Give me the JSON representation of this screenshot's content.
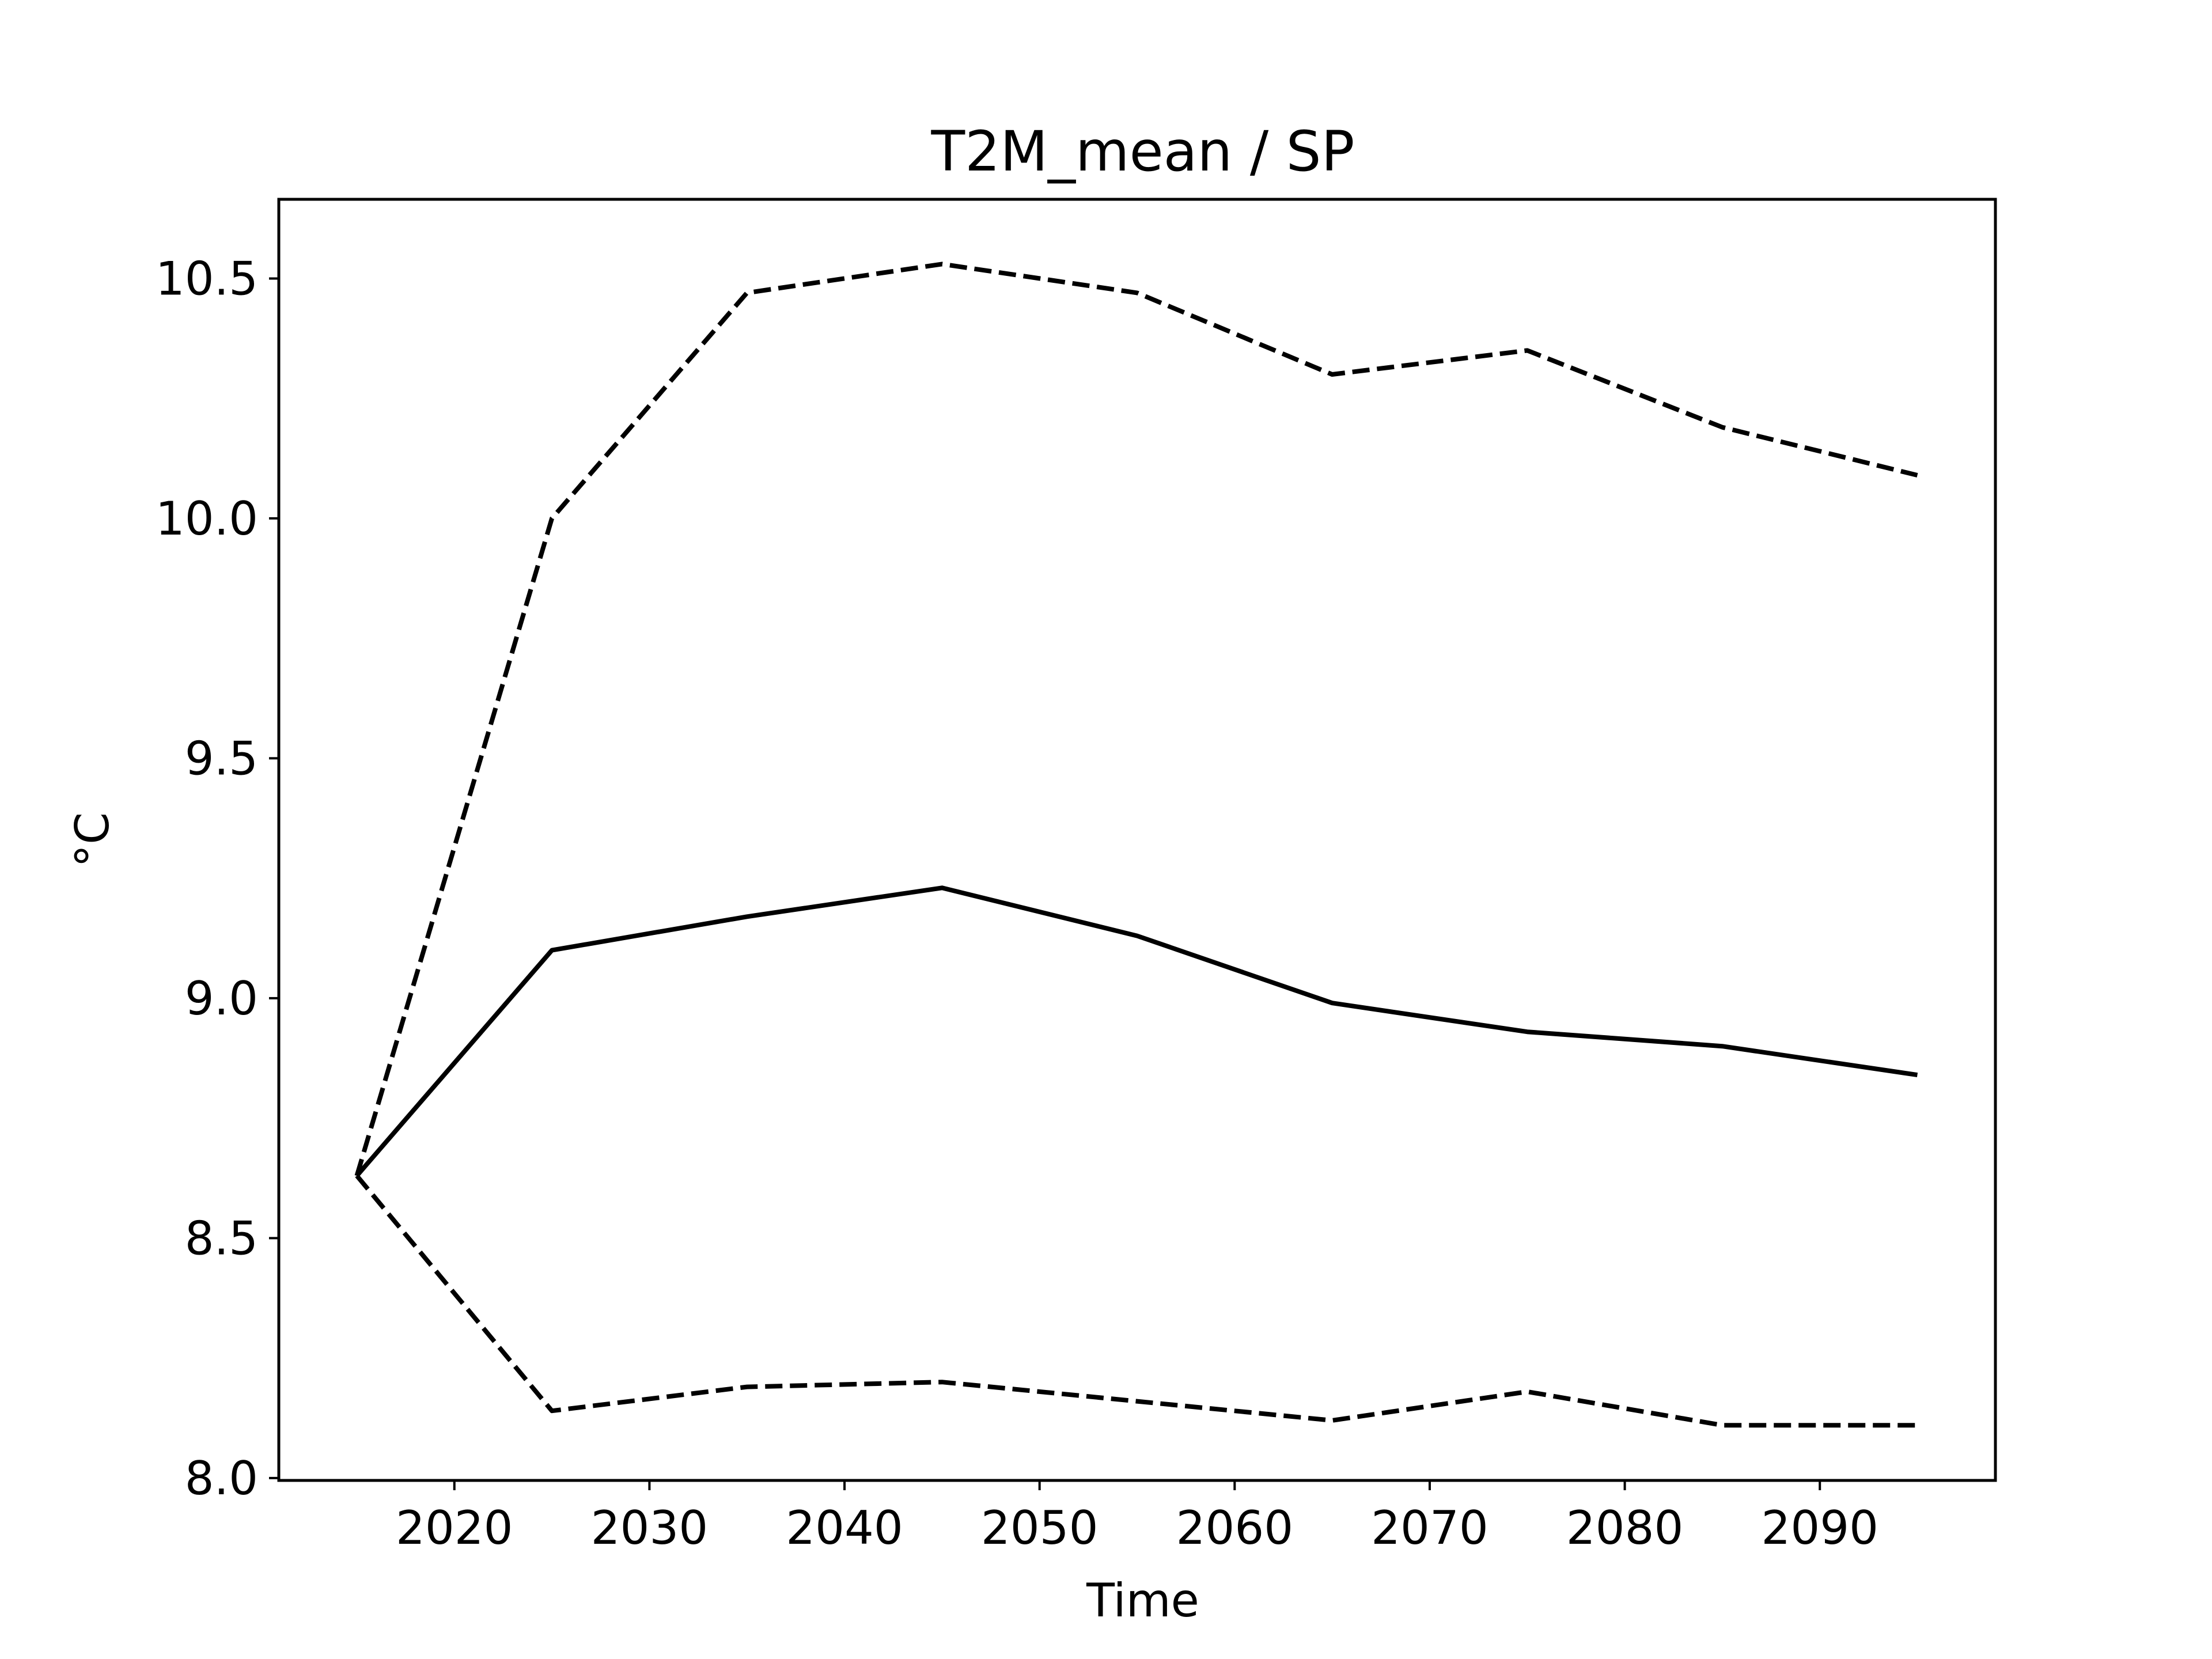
{
  "chart_data": {
    "type": "line",
    "title": "T2M_mean / SP",
    "xlabel": "Time",
    "ylabel": "°C",
    "xlim": [
      2011,
      2099
    ],
    "ylim": [
      7.995,
      10.665
    ],
    "xticks": [
      2020,
      2030,
      2040,
      2050,
      2060,
      2070,
      2080,
      2090
    ],
    "yticks": [
      8.0,
      8.5,
      9.0,
      9.5,
      10.0,
      10.5
    ],
    "ytick_labels": [
      "8.0",
      "8.5",
      "9.0",
      "9.5",
      "10.0",
      "10.5"
    ],
    "grid": false,
    "legend": "none",
    "x": [
      2015,
      2025,
      2035,
      2045,
      2055,
      2065,
      2075,
      2085,
      2095
    ],
    "series": [
      {
        "values": [
          8.63,
          10.0,
          10.47,
          10.53,
          10.47,
          10.3,
          10.35,
          10.19,
          10.09
        ],
        "style": "dashed",
        "color": "#000000"
      },
      {
        "values": [
          8.63,
          9.1,
          9.17,
          9.23,
          9.13,
          8.99,
          8.93,
          8.9,
          8.84
        ],
        "style": "solid",
        "color": "#000000"
      },
      {
        "values": [
          8.63,
          8.14,
          8.19,
          8.2,
          8.16,
          8.12,
          8.18,
          8.11,
          8.11
        ],
        "style": "dashed",
        "color": "#000000"
      }
    ]
  }
}
